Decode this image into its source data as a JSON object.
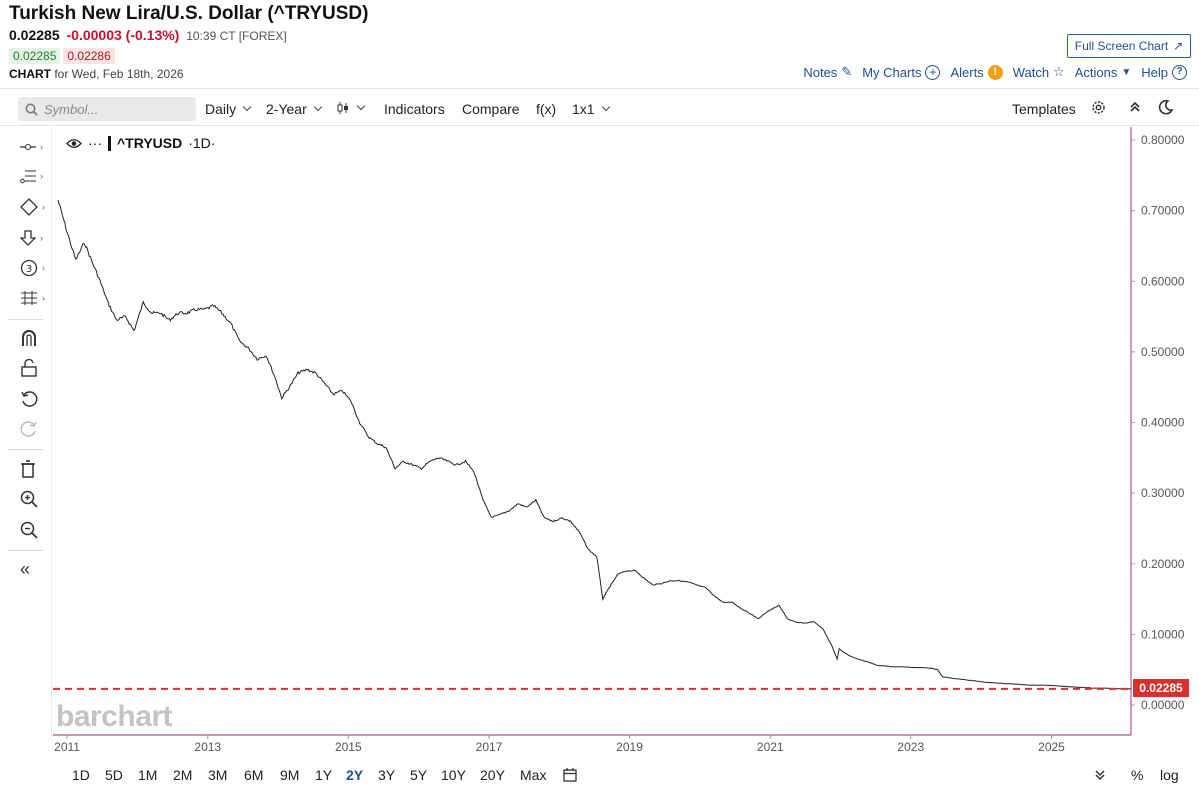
{
  "header": {
    "title": "Turkish New Lira/U.S. Dollar (^TRYUSD)",
    "last": "0.02285",
    "change": "-0.00003 (-0.13%)",
    "time": "10:39 CT [FOREX]",
    "bid": "0.02285",
    "ask": "0.02286",
    "chart_label": "CHART",
    "chart_date": "for Wed, Feb 18th, 2026",
    "full_screen": "Full Screen Chart"
  },
  "actions": {
    "notes": "Notes",
    "my_charts": "My Charts",
    "alerts": "Alerts",
    "watch": "Watch",
    "actions": "Actions",
    "help": "Help"
  },
  "toolbar": {
    "symbol_placeholder": "Symbol...",
    "interval": "Daily",
    "period": "2-Year",
    "indicators": "Indicators",
    "compare": "Compare",
    "fx": "f(x)",
    "layout": "1x1",
    "templates": "Templates"
  },
  "legend": {
    "symbol": "^TRYUSD",
    "interval": "·1D·",
    "dots": "···"
  },
  "price_tag": "0.02285",
  "watermark": "barchart",
  "ranges": [
    "1D",
    "5D",
    "1M",
    "2M",
    "3M",
    "6M",
    "9M",
    "1Y",
    "2Y",
    "3Y",
    "5Y",
    "10Y",
    "20Y",
    "Max"
  ],
  "active_range": "2Y",
  "bottom_right": {
    "percent": "%",
    "log": "log"
  },
  "colors": {
    "accent": "#1d4f91",
    "negative": "#c8102e",
    "price_line": "#d9302e",
    "axis_line": "#b0509c",
    "series": "#222222"
  },
  "chart_data": {
    "type": "line",
    "title": "",
    "xlabel": "",
    "ylabel": "",
    "x_ticks": [
      "2011",
      "2013",
      "2015",
      "2017",
      "2019",
      "2021",
      "2023",
      "2025"
    ],
    "y_ticks": [
      "0.80000",
      "0.70000",
      "0.60000",
      "0.50000",
      "0.40000",
      "0.30000",
      "0.20000",
      "0.10000",
      "0.00000"
    ],
    "ylim": [
      0,
      0.8
    ],
    "xlim": [
      "2010-11-15",
      "2026-02-18"
    ],
    "current_price": 0.02285,
    "series": [
      {
        "x": [
          "2010-11-15",
          "2011-01-01",
          "2011-02-15",
          "2011-04-01",
          "2011-05-15",
          "2011-06-15",
          "2011-08-01",
          "2011-09-15",
          "2011-11-01",
          "2011-12-15",
          "2012-02-01",
          "2012-03-15",
          "2012-05-01",
          "2012-06-15",
          "2012-08-01",
          "2012-09-15",
          "2012-11-01",
          "2012-12-15",
          "2013-02-01",
          "2013-03-15",
          "2013-05-01",
          "2013-06-15",
          "2013-08-01",
          "2013-09-15",
          "2013-11-01",
          "2013-12-15",
          "2014-01-20",
          "2014-03-01",
          "2014-04-15",
          "2014-06-01",
          "2014-07-15",
          "2014-09-01",
          "2014-10-15",
          "2014-12-01",
          "2015-01-15",
          "2015-03-01",
          "2015-04-15",
          "2015-06-01",
          "2015-07-15",
          "2015-09-01",
          "2015-10-15",
          "2015-12-01",
          "2016-01-15",
          "2016-03-01",
          "2016-04-15",
          "2016-06-01",
          "2016-07-15",
          "2016-09-01",
          "2016-10-15",
          "2016-12-01",
          "2017-01-15",
          "2017-03-01",
          "2017-04-15",
          "2017-06-01",
          "2017-07-15",
          "2017-09-01",
          "2017-10-15",
          "2017-12-01",
          "2018-01-15",
          "2018-03-01",
          "2018-04-15",
          "2018-06-01",
          "2018-07-15",
          "2018-08-15",
          "2018-09-15",
          "2018-11-01",
          "2018-12-15",
          "2019-02-01",
          "2019-03-15",
          "2019-05-01",
          "2019-06-15",
          "2019-08-01",
          "2019-09-15",
          "2019-11-01",
          "2019-12-15",
          "2020-02-01",
          "2020-03-15",
          "2020-05-01",
          "2020-06-15",
          "2020-08-01",
          "2020-09-15",
          "2020-11-01",
          "2020-12-15",
          "2021-02-15",
          "2021-04-01",
          "2021-05-15",
          "2021-07-01",
          "2021-08-15",
          "2021-10-01",
          "2021-11-15",
          "2021-12-15",
          "2021-12-25",
          "2022-01-15",
          "2022-03-01",
          "2022-04-15",
          "2022-06-01",
          "2022-07-15",
          "2022-09-01",
          "2022-10-15",
          "2022-12-01",
          "2023-01-15",
          "2023-03-01",
          "2023-04-15",
          "2023-05-20",
          "2023-06-15",
          "2023-08-01",
          "2023-10-01",
          "2023-12-01",
          "2024-02-01",
          "2024-04-01",
          "2024-06-01",
          "2024-08-01",
          "2024-10-01",
          "2024-12-01",
          "2025-02-01",
          "2025-04-01",
          "2025-06-01",
          "2025-08-01",
          "2025-10-01",
          "2025-12-01",
          "2026-02-18"
        ],
        "values": [
          0.715,
          0.67,
          0.63,
          0.655,
          0.625,
          0.605,
          0.57,
          0.545,
          0.55,
          0.53,
          0.57,
          0.555,
          0.555,
          0.545,
          0.555,
          0.555,
          0.56,
          0.56,
          0.565,
          0.555,
          0.54,
          0.515,
          0.505,
          0.49,
          0.495,
          0.465,
          0.435,
          0.45,
          0.47,
          0.475,
          0.47,
          0.455,
          0.44,
          0.445,
          0.43,
          0.4,
          0.38,
          0.37,
          0.365,
          0.335,
          0.345,
          0.34,
          0.335,
          0.345,
          0.35,
          0.345,
          0.34,
          0.345,
          0.33,
          0.29,
          0.265,
          0.27,
          0.275,
          0.285,
          0.28,
          0.29,
          0.265,
          0.26,
          0.265,
          0.26,
          0.245,
          0.22,
          0.21,
          0.15,
          0.165,
          0.185,
          0.19,
          0.19,
          0.18,
          0.17,
          0.172,
          0.176,
          0.176,
          0.174,
          0.17,
          0.166,
          0.155,
          0.145,
          0.146,
          0.137,
          0.13,
          0.122,
          0.132,
          0.141,
          0.122,
          0.117,
          0.116,
          0.118,
          0.108,
          0.085,
          0.065,
          0.08,
          0.075,
          0.068,
          0.064,
          0.06,
          0.056,
          0.055,
          0.054,
          0.054,
          0.053,
          0.053,
          0.052,
          0.05,
          0.04,
          0.038,
          0.036,
          0.034,
          0.032,
          0.031,
          0.03,
          0.029,
          0.028,
          0.028,
          0.027,
          0.026,
          0.025,
          0.024,
          0.024,
          0.023,
          0.02285
        ]
      }
    ]
  }
}
